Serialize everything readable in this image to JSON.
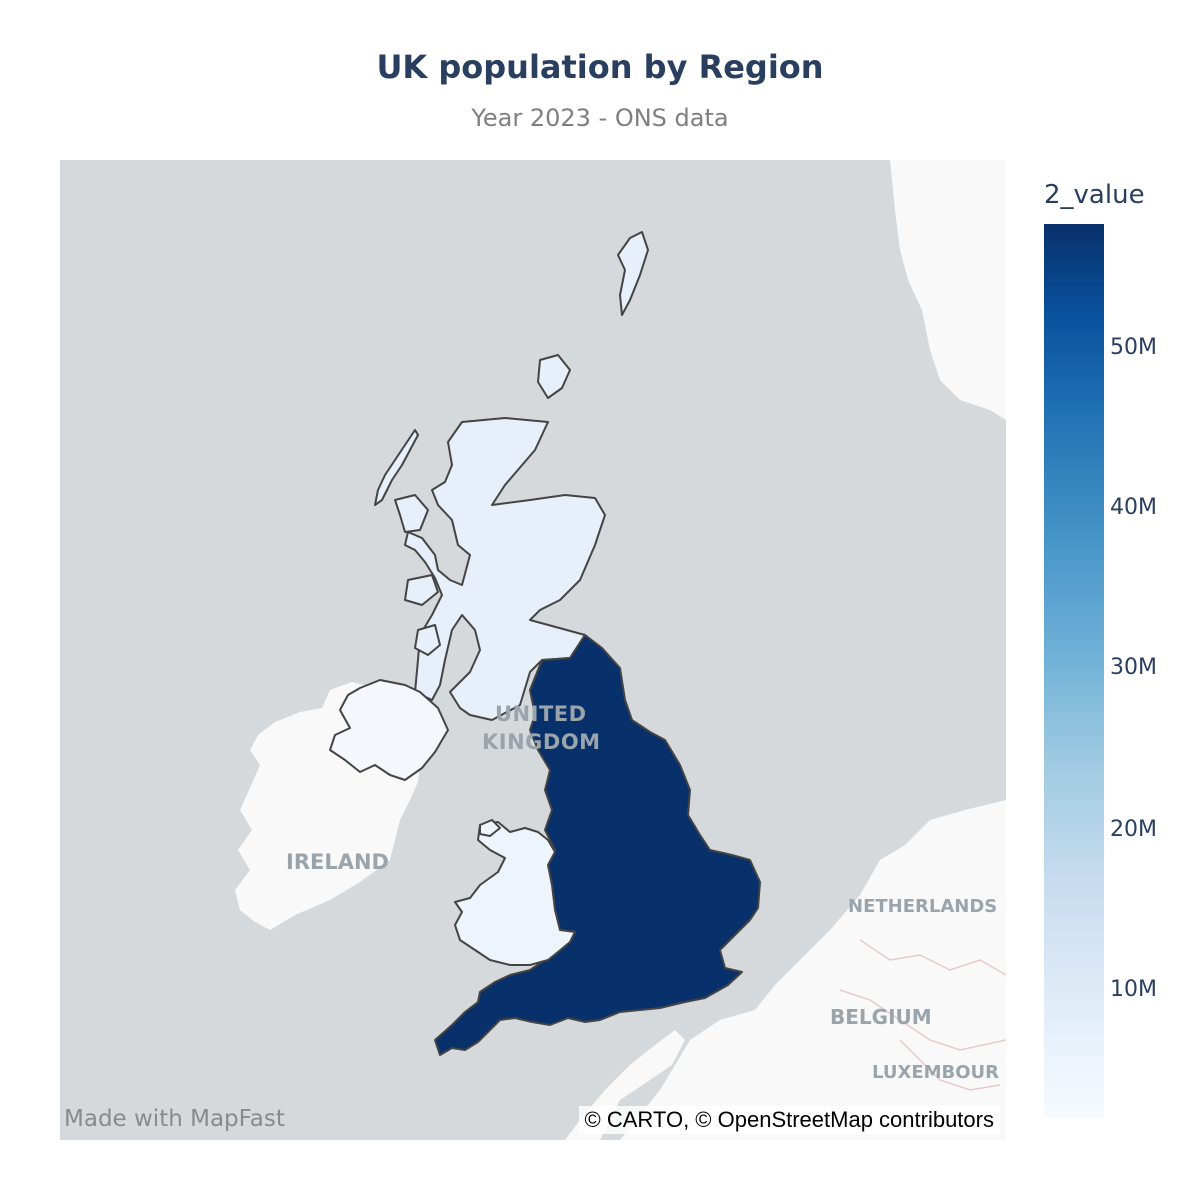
{
  "title": "UK population by Region",
  "subtitle": "Year 2023 - ONS data",
  "watermark": "Made with MapFast",
  "attribution": "© CARTO, © OpenStreetMap contributors",
  "colorbar": {
    "title": "2_value",
    "ticks": [
      "10M",
      "20M",
      "30M",
      "40M",
      "50M"
    ]
  },
  "place_labels": {
    "uk_line1": "UNITED",
    "uk_line2": "KINGDOM",
    "ireland": "IRELAND",
    "netherlands": "NETHERLANDS",
    "belgium": "BELGIUM",
    "luxembourg": "LUXEMBOUR"
  },
  "colors": {
    "sea": "#d5d9dc",
    "land": "#f9f9f9",
    "england": "#08306b",
    "scotland": "#e7f0fa",
    "wales": "#eef4fc",
    "northern_ireland": "#f4f8fe",
    "border": "#444444"
  },
  "chart_data": {
    "type": "choropleth",
    "regions": [
      "England",
      "Scotland",
      "Wales",
      "Northern Ireland"
    ],
    "colorbar_title": "2_value",
    "colorscale": "Blues"
  }
}
